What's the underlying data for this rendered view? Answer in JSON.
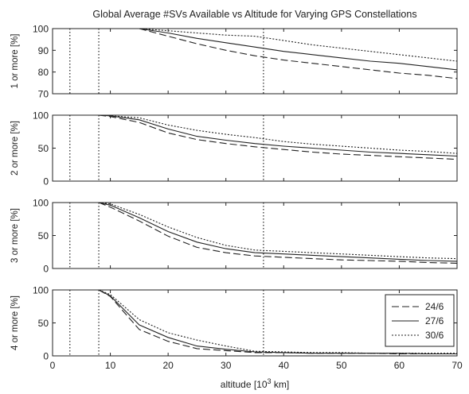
{
  "chart_data": {
    "type": "line",
    "title": "Global Average #SVs Available vs Altitude for Varying GPS Constellations",
    "xlabel": "altitude [10",
    "xlabel_sup": "3",
    "xlabel_unit": " km]",
    "xlim": [
      0,
      70
    ],
    "x_ticks": [
      0,
      10,
      20,
      30,
      40,
      50,
      60,
      70
    ],
    "x_tick_labels": [
      "0",
      "10",
      "20",
      "30",
      "40",
      "50",
      "60",
      "70"
    ],
    "vertical_markers": [
      3,
      8,
      36.5
    ],
    "legend": {
      "placement": "bottom-right, last panel",
      "entries": [
        {
          "label": "24/6",
          "style": "dashed"
        },
        {
          "label": "27/6",
          "style": "solid"
        },
        {
          "label": "30/6",
          "style": "dotted"
        }
      ]
    },
    "panels": [
      {
        "ylabel": "1 or more [%]",
        "ylim": [
          70,
          100
        ],
        "y_ticks": [
          70,
          80,
          90,
          100
        ],
        "y_tick_labels": [
          "70",
          "80",
          "90",
          "100"
        ],
        "x": [
          15,
          20,
          25,
          30,
          35,
          40,
          45,
          50,
          55,
          60,
          65,
          70
        ],
        "series": [
          {
            "name": "24/6",
            "style": "dashed",
            "values": [
              100,
              96.5,
              93,
              90,
              87.5,
              85.5,
              84,
              82.5,
              81,
              79.5,
              78.5,
              77
            ]
          },
          {
            "name": "27/6",
            "style": "solid",
            "values": [
              100,
              98,
              95.5,
              93.5,
              91.5,
              89.5,
              88,
              86.5,
              85,
              84,
              82.5,
              81
            ]
          },
          {
            "name": "30/6",
            "style": "dotted",
            "values": [
              100,
              99,
              98,
              97,
              96.5,
              94.5,
              92.5,
              91,
              89.5,
              88,
              86.5,
              85
            ]
          }
        ]
      },
      {
        "ylabel": "2 or more [%]",
        "ylim": [
          0,
          100
        ],
        "y_ticks": [
          0,
          50,
          100
        ],
        "y_tick_labels": [
          "0",
          "50",
          "100"
        ],
        "x": [
          8,
          10,
          15,
          20,
          25,
          30,
          35,
          40,
          45,
          50,
          55,
          60,
          65,
          70
        ],
        "series": [
          {
            "name": "24/6",
            "style": "dashed",
            "values": [
              100,
              98,
              89,
              73,
              63,
              57,
              52,
              48,
              44,
              41,
              39,
              37,
              35,
              33
            ]
          },
          {
            "name": "27/6",
            "style": "solid",
            "values": [
              100,
              99,
              93,
              79,
              68,
              62,
              57,
              53,
              50,
              47,
              44,
              42,
              40,
              38
            ]
          },
          {
            "name": "30/6",
            "style": "dotted",
            "values": [
              100,
              99,
              96,
              85,
              77,
              71,
              66,
              60,
              56,
              53,
              50,
              47,
              45,
              42
            ]
          }
        ]
      },
      {
        "ylabel": "3 or more [%]",
        "ylim": [
          0,
          100
        ],
        "y_ticks": [
          0,
          50,
          100
        ],
        "y_tick_labels": [
          "0",
          "50",
          "100"
        ],
        "x": [
          8,
          10,
          15,
          20,
          25,
          30,
          35,
          40,
          45,
          50,
          55,
          60,
          65,
          70
        ],
        "series": [
          {
            "name": "24/6",
            "style": "dashed",
            "values": [
              100,
              93,
              72,
              49,
              32,
              24,
              19,
              17,
              15,
              13,
              12,
              11,
              9,
              8
            ]
          },
          {
            "name": "27/6",
            "style": "solid",
            "values": [
              100,
              96,
              77,
              56,
              40,
              30,
              24,
              22,
              20,
              18,
              16,
              14,
              12,
              11
            ]
          },
          {
            "name": "30/6",
            "style": "dotted",
            "values": [
              100,
              98,
              82,
              63,
              47,
              35,
              28,
              26,
              24,
              22,
              20,
              18,
              16,
              15
            ]
          }
        ]
      },
      {
        "ylabel": "4 or more [%]",
        "ylim": [
          0,
          100
        ],
        "y_ticks": [
          0,
          50,
          100
        ],
        "y_tick_labels": [
          "0",
          "50",
          "100"
        ],
        "x": [
          8,
          10,
          15,
          20,
          25,
          30,
          35,
          40,
          45,
          50,
          55,
          60,
          65,
          70
        ],
        "series": [
          {
            "name": "24/6",
            "style": "dashed",
            "values": [
              100,
              90,
              40,
              22,
              11,
              8,
              5,
              5,
              4,
              4,
              4,
              3,
              3,
              3
            ]
          },
          {
            "name": "27/6",
            "style": "solid",
            "values": [
              100,
              91,
              47,
              28,
              15,
              10,
              6,
              5,
              4,
              4,
              4,
              4,
              3,
              3
            ]
          },
          {
            "name": "30/6",
            "style": "dotted",
            "values": [
              100,
              93,
              55,
              35,
              24,
              15,
              7,
              6,
              5,
              5,
              4,
              4,
              4,
              4
            ]
          }
        ]
      }
    ]
  }
}
